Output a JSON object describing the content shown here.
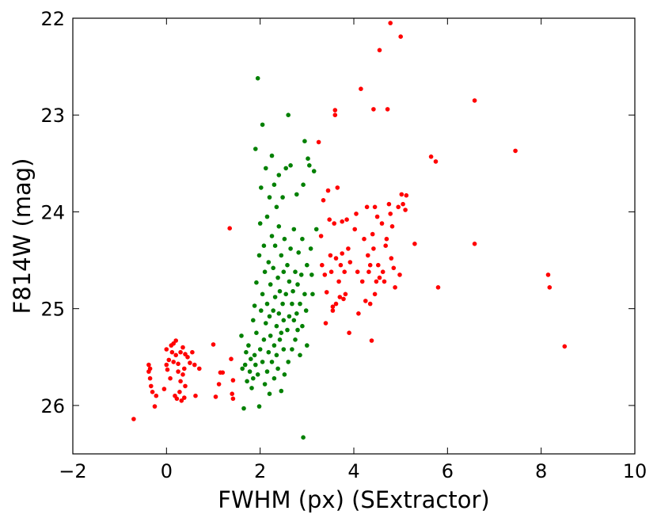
{
  "chart_data": {
    "type": "scatter",
    "title": "",
    "xlabel": "FWHM (px) (SExtractor)",
    "ylabel": "F814W (mag)",
    "xlim": [
      -2,
      10
    ],
    "ylim": [
      26.5,
      22
    ],
    "y_inverted": true,
    "xticks": [
      -2,
      0,
      2,
      4,
      6,
      8,
      10
    ],
    "yticks": [
      22,
      23,
      24,
      25,
      26
    ],
    "xtick_labels": [
      "−2",
      "0",
      "2",
      "4",
      "6",
      "8",
      "10"
    ],
    "ytick_labels": [
      "22",
      "23",
      "24",
      "25",
      "26"
    ],
    "grid": false,
    "series": [
      {
        "color": "#ff0000",
        "points": [
          [
            -0.7,
            26.14
          ],
          [
            -0.38,
            25.58
          ],
          [
            -0.35,
            25.62
          ],
          [
            -0.38,
            25.65
          ],
          [
            -0.35,
            25.72
          ],
          [
            -0.33,
            25.8
          ],
          [
            -0.3,
            25.86
          ],
          [
            -0.25,
            26.01
          ],
          [
            -0.22,
            25.9
          ],
          [
            -0.05,
            25.83
          ],
          [
            0.0,
            25.58
          ],
          [
            0.0,
            25.42
          ],
          [
            0.02,
            25.63
          ],
          [
            0.05,
            25.53
          ],
          [
            0.08,
            25.72
          ],
          [
            0.1,
            25.38
          ],
          [
            0.12,
            25.45
          ],
          [
            0.15,
            25.55
          ],
          [
            0.15,
            25.36
          ],
          [
            0.18,
            25.9
          ],
          [
            0.2,
            25.33
          ],
          [
            0.2,
            25.48
          ],
          [
            0.22,
            25.93
          ],
          [
            0.25,
            25.57
          ],
          [
            0.25,
            25.65
          ],
          [
            0.28,
            25.86
          ],
          [
            0.3,
            25.45
          ],
          [
            0.3,
            25.75
          ],
          [
            0.32,
            25.95
          ],
          [
            0.35,
            25.4
          ],
          [
            0.35,
            25.68
          ],
          [
            0.38,
            25.62
          ],
          [
            0.38,
            25.92
          ],
          [
            0.4,
            25.47
          ],
          [
            0.4,
            25.8
          ],
          [
            0.45,
            25.5
          ],
          [
            0.5,
            25.56
          ],
          [
            0.55,
            25.45
          ],
          [
            0.6,
            25.58
          ],
          [
            0.62,
            25.9
          ],
          [
            0.7,
            25.62
          ],
          [
            1.0,
            25.37
          ],
          [
            1.05,
            25.91
          ],
          [
            1.12,
            25.78
          ],
          [
            1.15,
            25.66
          ],
          [
            1.2,
            25.66
          ],
          [
            1.35,
            24.17
          ],
          [
            1.38,
            25.52
          ],
          [
            1.4,
            25.88
          ],
          [
            1.42,
            25.93
          ],
          [
            1.42,
            25.74
          ],
          [
            3.25,
            23.28
          ],
          [
            3.3,
            24.25
          ],
          [
            3.32,
            24.55
          ],
          [
            3.35,
            23.88
          ],
          [
            3.38,
            24.65
          ],
          [
            3.4,
            25.15
          ],
          [
            3.42,
            24.83
          ],
          [
            3.45,
            23.78
          ],
          [
            3.48,
            24.08
          ],
          [
            3.5,
            24.45
          ],
          [
            3.52,
            24.62
          ],
          [
            3.55,
            24.98
          ],
          [
            3.55,
            25.02
          ],
          [
            3.58,
            24.12
          ],
          [
            3.6,
            22.95
          ],
          [
            3.6,
            23.0
          ],
          [
            3.62,
            24.48
          ],
          [
            3.62,
            24.95
          ],
          [
            3.65,
            23.75
          ],
          [
            3.68,
            24.72
          ],
          [
            3.7,
            24.88
          ],
          [
            3.72,
            24.55
          ],
          [
            3.75,
            24.43
          ],
          [
            3.75,
            24.1
          ],
          [
            3.78,
            24.9
          ],
          [
            3.8,
            24.62
          ],
          [
            3.82,
            24.85
          ],
          [
            3.85,
            24.08
          ],
          [
            3.88,
            24.38
          ],
          [
            3.9,
            25.25
          ],
          [
            3.92,
            24.52
          ],
          [
            4.02,
            24.18
          ],
          [
            4.05,
            24.02
          ],
          [
            4.08,
            24.62
          ],
          [
            4.1,
            25.05
          ],
          [
            4.15,
            22.73
          ],
          [
            4.18,
            24.72
          ],
          [
            4.22,
            24.28
          ],
          [
            4.25,
            24.92
          ],
          [
            4.28,
            23.95
          ],
          [
            4.3,
            24.45
          ],
          [
            4.32,
            24.62
          ],
          [
            4.35,
            24.55
          ],
          [
            4.35,
            24.95
          ],
          [
            4.38,
            25.33
          ],
          [
            4.4,
            24.23
          ],
          [
            4.42,
            22.94
          ],
          [
            4.42,
            24.38
          ],
          [
            4.45,
            24.85
          ],
          [
            4.45,
            23.95
          ],
          [
            4.48,
            24.72
          ],
          [
            4.5,
            24.05
          ],
          [
            4.52,
            24.55
          ],
          [
            4.55,
            24.68
          ],
          [
            4.55,
            22.33
          ],
          [
            4.6,
            24.12
          ],
          [
            4.62,
            24.62
          ],
          [
            4.65,
            24.72
          ],
          [
            4.68,
            24.35
          ],
          [
            4.7,
            24.28
          ],
          [
            4.72,
            22.94
          ],
          [
            4.75,
            23.92
          ],
          [
            4.78,
            24.02
          ],
          [
            4.78,
            22.05
          ],
          [
            4.8,
            24.48
          ],
          [
            4.82,
            24.15
          ],
          [
            4.85,
            24.58
          ],
          [
            4.88,
            24.78
          ],
          [
            4.95,
            23.95
          ],
          [
            4.98,
            24.65
          ],
          [
            5.0,
            22.19
          ],
          [
            5.02,
            23.82
          ],
          [
            5.05,
            23.92
          ],
          [
            5.1,
            23.98
          ],
          [
            5.12,
            23.83
          ],
          [
            5.3,
            24.33
          ],
          [
            5.65,
            23.43
          ],
          [
            5.75,
            23.48
          ],
          [
            5.8,
            24.78
          ],
          [
            6.58,
            22.85
          ],
          [
            6.58,
            24.33
          ],
          [
            7.45,
            23.37
          ],
          [
            8.15,
            24.65
          ],
          [
            8.18,
            24.78
          ],
          [
            8.5,
            25.39
          ]
        ]
      },
      {
        "color": "#008000",
        "points": [
          [
            1.6,
            25.28
          ],
          [
            1.62,
            25.62
          ],
          [
            1.65,
            26.03
          ],
          [
            1.68,
            25.58
          ],
          [
            1.7,
            25.45
          ],
          [
            1.72,
            25.75
          ],
          [
            1.75,
            25.38
          ],
          [
            1.78,
            25.65
          ],
          [
            1.8,
            25.52
          ],
          [
            1.82,
            25.82
          ],
          [
            1.85,
            25.12
          ],
          [
            1.85,
            25.72
          ],
          [
            1.88,
            25.48
          ],
          [
            1.88,
            24.97
          ],
          [
            1.9,
            25.58
          ],
          [
            1.9,
            23.35
          ],
          [
            1.92,
            25.25
          ],
          [
            1.92,
            24.73
          ],
          [
            1.95,
            25.68
          ],
          [
            1.95,
            22.62
          ],
          [
            1.98,
            24.45
          ],
          [
            1.98,
            26.01
          ],
          [
            2.0,
            25.42
          ],
          [
            2.0,
            24.12
          ],
          [
            2.02,
            25.02
          ],
          [
            2.02,
            23.75
          ],
          [
            2.05,
            24.85
          ],
          [
            2.05,
            25.55
          ],
          [
            2.05,
            23.1
          ],
          [
            2.08,
            24.35
          ],
          [
            2.08,
            25.32
          ],
          [
            2.1,
            25.78
          ],
          [
            2.1,
            24.62
          ],
          [
            2.12,
            25.15
          ],
          [
            2.12,
            23.55
          ],
          [
            2.15,
            24.95
          ],
          [
            2.15,
            25.65
          ],
          [
            2.15,
            24.05
          ],
          [
            2.18,
            24.52
          ],
          [
            2.18,
            25.45
          ],
          [
            2.2,
            25.08
          ],
          [
            2.2,
            23.85
          ],
          [
            2.2,
            25.88
          ],
          [
            2.22,
            24.75
          ],
          [
            2.22,
            25.28
          ],
          [
            2.25,
            25.55
          ],
          [
            2.25,
            24.25
          ],
          [
            2.25,
            23.42
          ],
          [
            2.28,
            25.02
          ],
          [
            2.28,
            24.58
          ],
          [
            2.3,
            25.38
          ],
          [
            2.3,
            25.72
          ],
          [
            2.3,
            23.72
          ],
          [
            2.32,
            24.88
          ],
          [
            2.32,
            24.35
          ],
          [
            2.35,
            25.18
          ],
          [
            2.35,
            25.48
          ],
          [
            2.35,
            23.95
          ],
          [
            2.38,
            24.68
          ],
          [
            2.38,
            25.62
          ],
          [
            2.4,
            25.05
          ],
          [
            2.4,
            24.15
          ],
          [
            2.4,
            23.62
          ],
          [
            2.42,
            25.32
          ],
          [
            2.42,
            24.82
          ],
          [
            2.45,
            24.45
          ],
          [
            2.45,
            25.25
          ],
          [
            2.45,
            25.85
          ],
          [
            2.48,
            24.95
          ],
          [
            2.48,
            23.85
          ],
          [
            2.5,
            25.12
          ],
          [
            2.5,
            24.62
          ],
          [
            2.5,
            25.42
          ],
          [
            2.52,
            24.28
          ],
          [
            2.52,
            25.68
          ],
          [
            2.55,
            24.85
          ],
          [
            2.55,
            23.55
          ],
          [
            2.58,
            25.22
          ],
          [
            2.58,
            24.55
          ],
          [
            2.6,
            23.0
          ],
          [
            2.6,
            25.55
          ],
          [
            2.62,
            24.72
          ],
          [
            2.62,
            25.08
          ],
          [
            2.65,
            23.52
          ],
          [
            2.65,
            24.38
          ],
          [
            2.68,
            24.95
          ],
          [
            2.68,
            25.42
          ],
          [
            2.7,
            24.82
          ],
          [
            2.72,
            25.12
          ],
          [
            2.72,
            24.18
          ],
          [
            2.75,
            25.32
          ],
          [
            2.75,
            24.62
          ],
          [
            2.78,
            25.05
          ],
          [
            2.78,
            23.82
          ],
          [
            2.8,
            24.75
          ],
          [
            2.8,
            25.22
          ],
          [
            2.82,
            24.42
          ],
          [
            2.85,
            24.95
          ],
          [
            2.85,
            25.48
          ],
          [
            2.88,
            24.65
          ],
          [
            2.9,
            24.28
          ],
          [
            2.9,
            25.18
          ],
          [
            2.92,
            26.33
          ],
          [
            2.92,
            23.72
          ],
          [
            2.95,
            23.27
          ],
          [
            2.95,
            24.85
          ],
          [
            2.98,
            25.02
          ],
          [
            3.0,
            24.55
          ],
          [
            3.0,
            25.38
          ],
          [
            3.02,
            23.45
          ],
          [
            3.05,
            23.52
          ],
          [
            3.08,
            24.38
          ],
          [
            3.1,
            24.65
          ],
          [
            3.12,
            24.85
          ],
          [
            3.15,
            23.58
          ],
          [
            3.2,
            24.18
          ]
        ]
      }
    ]
  }
}
